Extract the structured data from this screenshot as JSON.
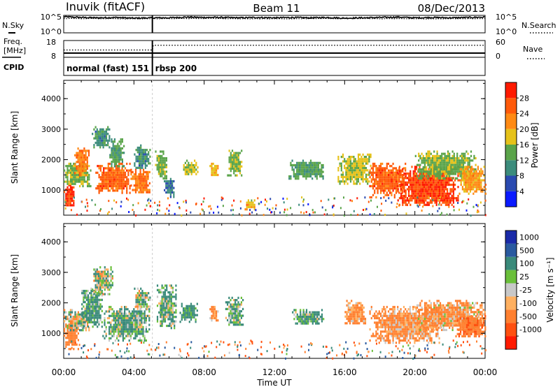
{
  "header": {
    "station": "Inuvik (fitACF)",
    "beam": "Beam 11",
    "date": "08/Dec/2013"
  },
  "noise_panel": {
    "left_label": "N.Sky",
    "right_label": "N.Search",
    "left_ticks": [
      "10^5",
      "10^0"
    ],
    "right_ticks": [
      "10^5",
      "10^0"
    ]
  },
  "freq_panel": {
    "left_label_line1": "Freq.",
    "left_label_line2": "[MHz]",
    "right_label": "Nave",
    "left_ticks": [
      "18",
      "8"
    ],
    "right_ticks": [
      "60",
      "0"
    ]
  },
  "cpid": {
    "label": "CPID",
    "segments": [
      {
        "name": "normal (fast) 151",
        "start_hour": 0.0,
        "end_hour": 5.05
      },
      {
        "name": "rbsp 200",
        "start_hour": 5.05,
        "end_hour": 24.0
      }
    ]
  },
  "time_axis": {
    "label": "Time UT",
    "ticks": [
      "00:00",
      "04:00",
      "08:00",
      "12:00",
      "16:00",
      "20:00",
      "00:00"
    ]
  },
  "range_axis": {
    "label": "Slant Range [km]",
    "ticks": [
      "1000",
      "2000",
      "3000",
      "4000"
    ]
  },
  "power_scale": {
    "title": "Power [dB]",
    "ticks": [
      "4",
      "8",
      "12",
      "16",
      "20",
      "24",
      "28"
    ],
    "colors": [
      "#0a1aff",
      "#2a4ab0",
      "#3c8c7c",
      "#5aa44a",
      "#e6c21a",
      "#ff8a14",
      "#ff5a0a",
      "#ff1a00"
    ]
  },
  "velocity_scale": {
    "title": "Velocity [m s⁻¹]",
    "ticks": [
      "1000",
      "500",
      "100",
      "25",
      "-25",
      "-100",
      "-500",
      "-1000"
    ],
    "colors": [
      "#1a2aa8",
      "#2a5aa0",
      "#3a8a7a",
      "#6abf3a",
      "#c8c8c8",
      "#ffb060",
      "#ff8030",
      "#ff5010",
      "#ff1a00"
    ]
  },
  "chart_data": [
    {
      "type": "line",
      "title": "Noise",
      "series": [
        {
          "name": "N.Sky",
          "x": [
            0,
            1,
            2,
            3,
            4,
            5,
            6,
            7,
            8,
            9,
            10,
            11,
            12,
            13,
            14,
            15,
            16,
            17,
            18,
            19,
            20,
            21,
            22,
            23,
            24
          ],
          "y": [
            4.6,
            4.4,
            4.3,
            4.4,
            4.2,
            4.3,
            4.3,
            4.5,
            4.4,
            4.4,
            4.3,
            4.4,
            4.3,
            4.4,
            4.3,
            4.4,
            4.2,
            4.3,
            4.4,
            4.5,
            4.3,
            4.4,
            4.3,
            4.4,
            4.5
          ]
        },
        {
          "name": "N.Search",
          "x": [
            0,
            4,
            8,
            12,
            16,
            20,
            24
          ],
          "y": [
            4.1,
            4.0,
            4.1,
            4.0,
            4.1,
            4.0,
            4.1
          ]
        }
      ],
      "xlim": [
        0,
        24
      ]
    },
    {
      "type": "line",
      "title": "Freq.",
      "series": [
        {
          "name": "Freq.",
          "x": [
            0,
            5.05,
            24
          ],
          "y": [
            10.5,
            10.5,
            10.5
          ]
        },
        {
          "name": "Nave",
          "x": [
            0,
            5.05,
            5.1,
            24
          ],
          "y": [
            26,
            26,
            43,
            43
          ]
        }
      ],
      "xlim": [
        0,
        24
      ]
    },
    {
      "type": "heatmap",
      "title": "Power [dB]",
      "x_unit": "hour UT",
      "y_unit": "km",
      "xlim": [
        0,
        24
      ],
      "ylim": [
        180,
        4600
      ],
      "clim": [
        0,
        30
      ],
      "blobs": [
        {
          "t0": 0.0,
          "t1": 0.6,
          "r0": 500,
          "r1": 1200,
          "v": 27
        },
        {
          "t0": 0.0,
          "t1": 1.5,
          "r0": 1100,
          "r1": 1900,
          "v": 14
        },
        {
          "t0": 0.6,
          "t1": 1.4,
          "r0": 1500,
          "r1": 2400,
          "v": 22
        },
        {
          "t0": 1.6,
          "t1": 2.6,
          "r0": 2400,
          "r1": 3100,
          "v": 10
        },
        {
          "t0": 1.8,
          "t1": 3.8,
          "r0": 900,
          "r1": 1900,
          "v": 24
        },
        {
          "t0": 2.6,
          "t1": 3.4,
          "r0": 1800,
          "r1": 2700,
          "v": 12
        },
        {
          "t0": 3.8,
          "t1": 4.9,
          "r0": 900,
          "r1": 1700,
          "v": 22
        },
        {
          "t0": 4.0,
          "t1": 4.9,
          "r0": 1700,
          "r1": 2500,
          "v": 10
        },
        {
          "t0": 5.2,
          "t1": 5.9,
          "r0": 1400,
          "r1": 2300,
          "v": 14
        },
        {
          "t0": 5.7,
          "t1": 6.3,
          "r0": 800,
          "r1": 1400,
          "v": 8
        },
        {
          "t0": 6.8,
          "t1": 7.6,
          "r0": 1500,
          "r1": 2000,
          "v": 16
        },
        {
          "t0": 8.3,
          "t1": 8.8,
          "r0": 1500,
          "r1": 1900,
          "v": 18
        },
        {
          "t0": 9.3,
          "t1": 10.1,
          "r0": 1500,
          "r1": 2400,
          "v": 14
        },
        {
          "t0": 10.3,
          "t1": 10.9,
          "r0": 400,
          "r1": 700,
          "v": 18
        },
        {
          "t0": 12.8,
          "t1": 14.8,
          "r0": 1400,
          "r1": 2000,
          "v": 12
        },
        {
          "t0": 15.6,
          "t1": 17.5,
          "r0": 1200,
          "r1": 2200,
          "v": 16
        },
        {
          "t0": 17.4,
          "t1": 19.5,
          "r0": 800,
          "r1": 1900,
          "v": 24
        },
        {
          "t0": 19.0,
          "t1": 22.5,
          "r0": 500,
          "r1": 1800,
          "v": 26
        },
        {
          "t0": 20.0,
          "t1": 23.5,
          "r0": 1400,
          "r1": 2300,
          "v": 14
        },
        {
          "t0": 22.5,
          "t1": 24.0,
          "r0": 900,
          "r1": 1800,
          "v": 20
        }
      ]
    },
    {
      "type": "heatmap",
      "title": "Velocity [m s⁻¹]",
      "x_unit": "hour UT",
      "y_unit": "km",
      "xlim": [
        0,
        24
      ],
      "ylim": [
        180,
        4600
      ],
      "clim": [
        -1000,
        1000
      ],
      "blobs": [
        {
          "t0": 0.0,
          "t1": 0.8,
          "r0": 500,
          "r1": 1400,
          "v": -300
        },
        {
          "t0": 0.0,
          "t1": 1.5,
          "r0": 1100,
          "r1": 1800,
          "v": 20
        },
        {
          "t0": 1.0,
          "t1": 2.2,
          "r0": 1200,
          "r1": 2500,
          "v": 150
        },
        {
          "t0": 1.6,
          "t1": 2.8,
          "r0": 2300,
          "r1": 3200,
          "v": 40
        },
        {
          "t0": 2.2,
          "t1": 4.9,
          "r0": 800,
          "r1": 1900,
          "v": 120
        },
        {
          "t0": 4.0,
          "t1": 4.9,
          "r0": 1800,
          "r1": 2500,
          "v": 60
        },
        {
          "t0": 5.3,
          "t1": 6.4,
          "r0": 1200,
          "r1": 2600,
          "v": 120
        },
        {
          "t0": 6.6,
          "t1": 7.6,
          "r0": 1400,
          "r1": 2000,
          "v": 200
        },
        {
          "t0": 8.3,
          "t1": 8.8,
          "r0": 1400,
          "r1": 1900,
          "v": -150
        },
        {
          "t0": 9.2,
          "t1": 10.2,
          "r0": 1300,
          "r1": 2200,
          "v": 120
        },
        {
          "t0": 13.0,
          "t1": 14.8,
          "r0": 1300,
          "r1": 1800,
          "v": 150
        },
        {
          "t0": 16.0,
          "t1": 17.2,
          "r0": 1300,
          "r1": 2100,
          "v": -150
        },
        {
          "t0": 17.4,
          "t1": 21.5,
          "r0": 700,
          "r1": 1900,
          "v": -160
        },
        {
          "t0": 20.0,
          "t1": 24.0,
          "r0": 1100,
          "r1": 2100,
          "v": -130
        },
        {
          "t0": 22.3,
          "t1": 24.0,
          "r0": 900,
          "r1": 1600,
          "v": -400
        }
      ]
    }
  ]
}
